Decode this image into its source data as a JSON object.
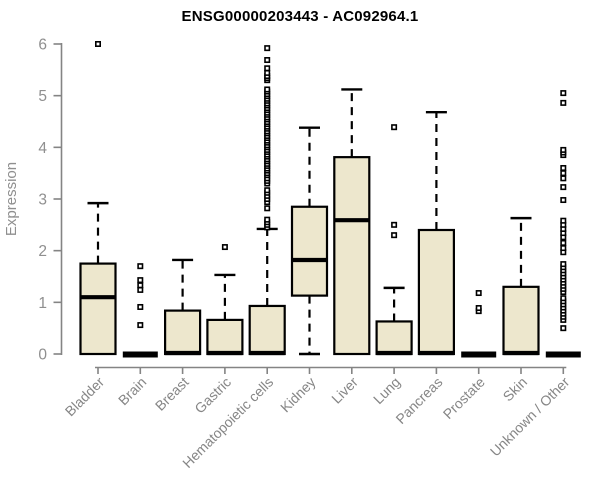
{
  "title": "ENSG00000203443 - AC092964.1",
  "chart_data": {
    "type": "box",
    "title": "ENSG00000203443 - AC092964.1",
    "ylabel": "Expression",
    "xlabel": "",
    "ylim": [
      0,
      6
    ],
    "yticks": [
      0,
      1,
      2,
      3,
      4,
      5,
      6
    ],
    "grid": false,
    "legend": false,
    "colors": {
      "box_fill": "#EDE7CD",
      "box_stroke": "#000000",
      "median": "#000000",
      "whisker": "#000000",
      "outlier": "#000000",
      "axis": "#848484",
      "tick_label": "#8f8f8f",
      "category_label": "#868686",
      "title": "#000000",
      "background": "#ffffff"
    },
    "categories": [
      "Bladder",
      "Brain",
      "Breast",
      "Gastric",
      "Hematopoietic cells",
      "Kidney",
      "Liver",
      "Lung",
      "Pancreas",
      "Prostate",
      "Skin",
      "Unknown / Other"
    ],
    "series": [
      {
        "name": "Bladder",
        "whisker_low": 0,
        "q1": 0,
        "median": 1.1,
        "q3": 1.75,
        "whisker_high": 2.92,
        "outliers": [
          6.0
        ]
      },
      {
        "name": "Brain",
        "whisker_low": 0,
        "q1": 0,
        "median": 0,
        "q3": 0,
        "whisker_high": 0,
        "outliers": [
          0.56,
          0.91,
          1.24,
          1.33,
          1.43,
          1.7
        ]
      },
      {
        "name": "Breast",
        "whisker_low": 0,
        "q1": 0,
        "median": 0.02,
        "q3": 0.84,
        "whisker_high": 1.82,
        "outliers": []
      },
      {
        "name": "Gastric",
        "whisker_low": 0,
        "q1": 0,
        "median": 0.02,
        "q3": 0.66,
        "whisker_high": 1.53,
        "outliers": [
          2.07
        ]
      },
      {
        "name": "Hematopoietic cells",
        "whisker_low": 0,
        "q1": 0,
        "median": 0.02,
        "q3": 0.93,
        "whisker_high": 2.42,
        "outliers": [
          2.45,
          2.5,
          2.55,
          2.6,
          2.82,
          2.94,
          3.0,
          3.06,
          3.12,
          3.17,
          3.3,
          3.35,
          3.4,
          3.46,
          3.5,
          3.55,
          3.59,
          3.64,
          3.68,
          3.73,
          3.77,
          3.82,
          3.86,
          3.91,
          3.95,
          4.0,
          4.04,
          4.09,
          4.13,
          4.18,
          4.22,
          4.27,
          4.31,
          4.36,
          4.4,
          4.45,
          4.49,
          4.54,
          4.58,
          4.63,
          4.67,
          4.72,
          4.76,
          4.81,
          4.85,
          4.9,
          4.94,
          4.99,
          5.03,
          5.08,
          5.12,
          5.3,
          5.34,
          5.38,
          5.44,
          5.53,
          5.69,
          5.92
        ]
      },
      {
        "name": "Kidney",
        "whisker_low": 0,
        "q1": 1.13,
        "median": 1.82,
        "q3": 2.85,
        "whisker_high": 4.38,
        "outliers": []
      },
      {
        "name": "Liver",
        "whisker_low": 0,
        "q1": 0,
        "median": 2.59,
        "q3": 3.81,
        "whisker_high": 5.12,
        "outliers": []
      },
      {
        "name": "Lung",
        "whisker_low": 0,
        "q1": 0,
        "median": 0.02,
        "q3": 0.63,
        "whisker_high": 1.28,
        "outliers": [
          2.3,
          2.5,
          4.39
        ]
      },
      {
        "name": "Pancreas",
        "whisker_low": 0,
        "q1": 0,
        "median": 0.02,
        "q3": 2.4,
        "whisker_high": 4.68,
        "outliers": []
      },
      {
        "name": "Prostate",
        "whisker_low": 0,
        "q1": 0,
        "median": 0,
        "q3": 0,
        "whisker_high": 0,
        "outliers": [
          0.83,
          0.89,
          1.18
        ]
      },
      {
        "name": "Skin",
        "whisker_low": 0,
        "q1": 0,
        "median": 0.02,
        "q3": 1.3,
        "whisker_high": 2.63,
        "outliers": []
      },
      {
        "name": "Unknown / Other",
        "whisker_low": 0,
        "q1": 0,
        "median": 0,
        "q3": 0,
        "whisker_high": 0,
        "outliers": [
          0.5,
          0.66,
          0.72,
          0.78,
          0.84,
          0.9,
          0.96,
          1.02,
          1.08,
          1.2,
          1.26,
          1.32,
          1.38,
          1.44,
          1.5,
          1.56,
          1.62,
          1.68,
          1.74,
          1.97,
          2.05,
          2.15,
          2.26,
          2.34,
          2.42,
          2.5,
          2.58,
          2.98,
          3.23,
          3.4,
          3.5,
          3.6,
          3.85,
          3.9,
          3.95,
          4.86,
          5.05
        ]
      }
    ]
  }
}
